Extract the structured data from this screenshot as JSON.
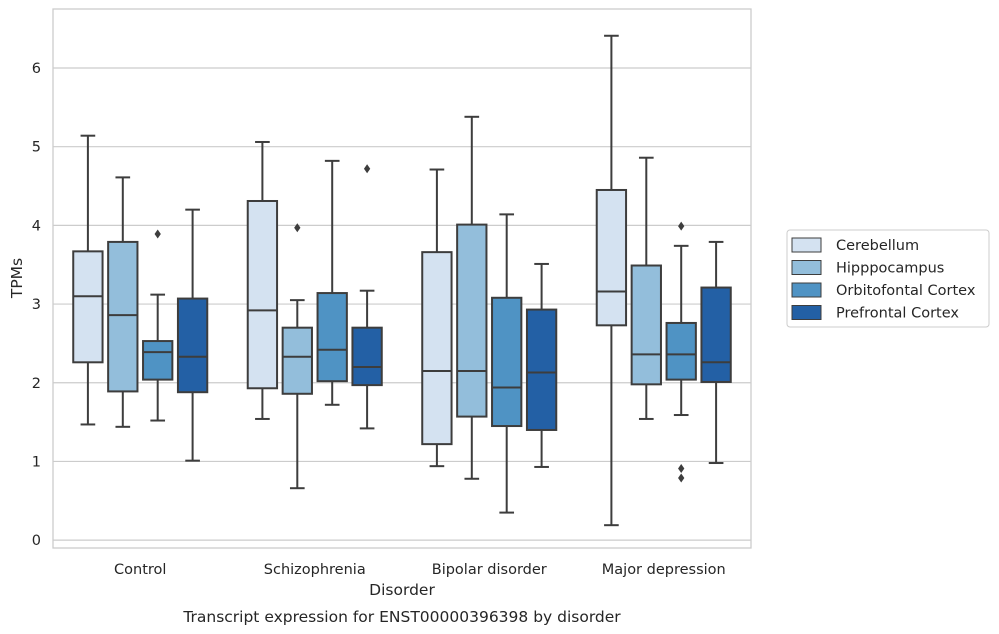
{
  "caption": "Transcript expression for ENST00000396398 by disorder",
  "colors": {
    "Cerebellum": "#d4e2f1",
    "Hipppocampus": "#93bedb",
    "Orbitofontal Cortex": "#4f93c4",
    "Prefrontal Cortex": "#2360a5",
    "box_edge": "#3d3d3d",
    "grid": "#cccccc",
    "frame": "#cccccc"
  },
  "chart_data": {
    "type": "box",
    "xlabel": "Disorder",
    "ylabel": "TPMs",
    "ylim": [
      -0.1,
      6.75
    ],
    "yticks": [
      0,
      1,
      2,
      3,
      4,
      5,
      6
    ],
    "grid": "horizontal",
    "legend_position": "outside-right",
    "categories": [
      "Control",
      "Schizophrenia",
      "Bipolar disorder",
      "Major depression"
    ],
    "series": [
      {
        "name": "Cerebellum",
        "boxes": [
          {
            "whislo": 1.47,
            "q1": 2.26,
            "med": 3.1,
            "q3": 3.67,
            "whishi": 5.14,
            "fliers": []
          },
          {
            "whislo": 1.54,
            "q1": 1.93,
            "med": 2.92,
            "q3": 4.31,
            "whishi": 5.06,
            "fliers": []
          },
          {
            "whislo": 0.94,
            "q1": 1.22,
            "med": 2.15,
            "q3": 3.66,
            "whishi": 4.71,
            "fliers": []
          },
          {
            "whislo": 0.19,
            "q1": 2.73,
            "med": 3.16,
            "q3": 4.45,
            "whishi": 6.41,
            "fliers": []
          }
        ]
      },
      {
        "name": "Hipppocampus",
        "boxes": [
          {
            "whislo": 1.44,
            "q1": 1.89,
            "med": 2.86,
            "q3": 3.79,
            "whishi": 4.61,
            "fliers": []
          },
          {
            "whislo": 0.66,
            "q1": 1.86,
            "med": 2.33,
            "q3": 2.7,
            "whishi": 3.05,
            "fliers": [
              3.97
            ]
          },
          {
            "whislo": 0.78,
            "q1": 1.57,
            "med": 2.15,
            "q3": 4.01,
            "whishi": 5.38,
            "fliers": []
          },
          {
            "whislo": 1.54,
            "q1": 1.98,
            "med": 2.36,
            "q3": 3.49,
            "whishi": 4.86,
            "fliers": []
          }
        ]
      },
      {
        "name": "Orbitofontal Cortex",
        "boxes": [
          {
            "whislo": 1.52,
            "q1": 2.04,
            "med": 2.39,
            "q3": 2.53,
            "whishi": 3.12,
            "fliers": [
              3.89
            ]
          },
          {
            "whislo": 1.72,
            "q1": 2.02,
            "med": 2.42,
            "q3": 3.14,
            "whishi": 4.82,
            "fliers": []
          },
          {
            "whislo": 0.35,
            "q1": 1.45,
            "med": 1.94,
            "q3": 3.08,
            "whishi": 4.14,
            "fliers": []
          },
          {
            "whislo": 1.59,
            "q1": 2.04,
            "med": 2.36,
            "q3": 2.76,
            "whishi": 3.74,
            "fliers": [
              3.99,
              0.91,
              0.79
            ]
          }
        ]
      },
      {
        "name": "Prefrontal Cortex",
        "boxes": [
          {
            "whislo": 1.01,
            "q1": 1.88,
            "med": 2.33,
            "q3": 3.07,
            "whishi": 4.2,
            "fliers": []
          },
          {
            "whislo": 1.42,
            "q1": 1.97,
            "med": 2.2,
            "q3": 2.7,
            "whishi": 3.17,
            "fliers": [
              4.72
            ]
          },
          {
            "whislo": 0.93,
            "q1": 1.4,
            "med": 2.13,
            "q3": 2.93,
            "whishi": 3.51,
            "fliers": []
          },
          {
            "whislo": 0.98,
            "q1": 2.01,
            "med": 2.26,
            "q3": 3.21,
            "whishi": 3.79,
            "fliers": []
          }
        ]
      }
    ]
  }
}
